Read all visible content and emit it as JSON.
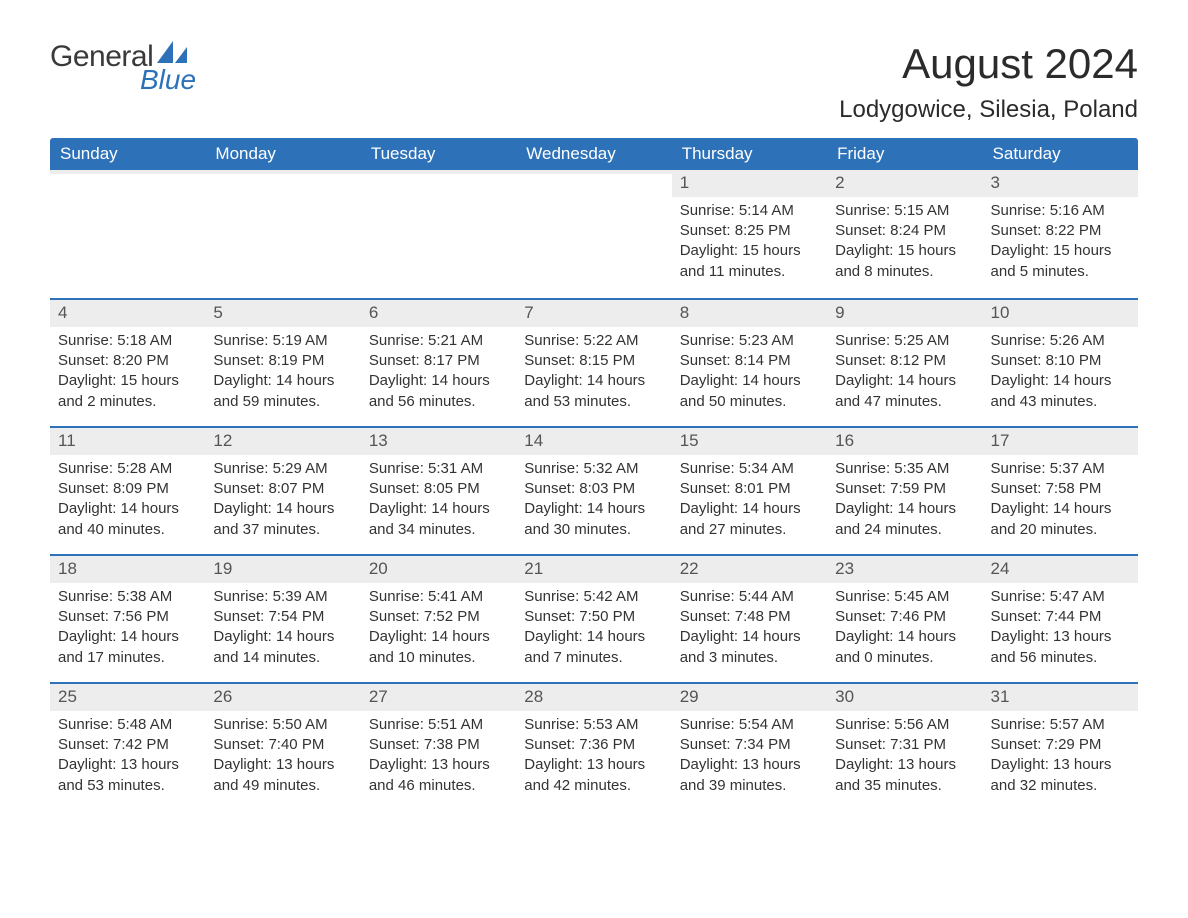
{
  "brand": {
    "name_main": "General",
    "name_sub": "Blue",
    "sail_color": "#2d71b8",
    "text_main_color": "#3a3a3a"
  },
  "header": {
    "month_title": "August 2024",
    "location": "Lodygowice, Silesia, Poland"
  },
  "style": {
    "header_bg": "#2d71b8",
    "header_fg": "#ffffff",
    "daynum_bg": "#ededed",
    "daynum_fg": "#555555",
    "body_fg": "#333333",
    "week_border": "#2d71b8",
    "page_bg": "#ffffff",
    "title_fontsize": 42,
    "location_fontsize": 24,
    "weekday_fontsize": 17,
    "body_fontsize": 15
  },
  "weekdays": [
    "Sunday",
    "Monday",
    "Tuesday",
    "Wednesday",
    "Thursday",
    "Friday",
    "Saturday"
  ],
  "weeks": [
    [
      {
        "empty": true
      },
      {
        "empty": true
      },
      {
        "empty": true
      },
      {
        "empty": true
      },
      {
        "num": "1",
        "sunrise": "Sunrise: 5:14 AM",
        "sunset": "Sunset: 8:25 PM",
        "daylight": "Daylight: 15 hours and 11 minutes."
      },
      {
        "num": "2",
        "sunrise": "Sunrise: 5:15 AM",
        "sunset": "Sunset: 8:24 PM",
        "daylight": "Daylight: 15 hours and 8 minutes."
      },
      {
        "num": "3",
        "sunrise": "Sunrise: 5:16 AM",
        "sunset": "Sunset: 8:22 PM",
        "daylight": "Daylight: 15 hours and 5 minutes."
      }
    ],
    [
      {
        "num": "4",
        "sunrise": "Sunrise: 5:18 AM",
        "sunset": "Sunset: 8:20 PM",
        "daylight": "Daylight: 15 hours and 2 minutes."
      },
      {
        "num": "5",
        "sunrise": "Sunrise: 5:19 AM",
        "sunset": "Sunset: 8:19 PM",
        "daylight": "Daylight: 14 hours and 59 minutes."
      },
      {
        "num": "6",
        "sunrise": "Sunrise: 5:21 AM",
        "sunset": "Sunset: 8:17 PM",
        "daylight": "Daylight: 14 hours and 56 minutes."
      },
      {
        "num": "7",
        "sunrise": "Sunrise: 5:22 AM",
        "sunset": "Sunset: 8:15 PM",
        "daylight": "Daylight: 14 hours and 53 minutes."
      },
      {
        "num": "8",
        "sunrise": "Sunrise: 5:23 AM",
        "sunset": "Sunset: 8:14 PM",
        "daylight": "Daylight: 14 hours and 50 minutes."
      },
      {
        "num": "9",
        "sunrise": "Sunrise: 5:25 AM",
        "sunset": "Sunset: 8:12 PM",
        "daylight": "Daylight: 14 hours and 47 minutes."
      },
      {
        "num": "10",
        "sunrise": "Sunrise: 5:26 AM",
        "sunset": "Sunset: 8:10 PM",
        "daylight": "Daylight: 14 hours and 43 minutes."
      }
    ],
    [
      {
        "num": "11",
        "sunrise": "Sunrise: 5:28 AM",
        "sunset": "Sunset: 8:09 PM",
        "daylight": "Daylight: 14 hours and 40 minutes."
      },
      {
        "num": "12",
        "sunrise": "Sunrise: 5:29 AM",
        "sunset": "Sunset: 8:07 PM",
        "daylight": "Daylight: 14 hours and 37 minutes."
      },
      {
        "num": "13",
        "sunrise": "Sunrise: 5:31 AM",
        "sunset": "Sunset: 8:05 PM",
        "daylight": "Daylight: 14 hours and 34 minutes."
      },
      {
        "num": "14",
        "sunrise": "Sunrise: 5:32 AM",
        "sunset": "Sunset: 8:03 PM",
        "daylight": "Daylight: 14 hours and 30 minutes."
      },
      {
        "num": "15",
        "sunrise": "Sunrise: 5:34 AM",
        "sunset": "Sunset: 8:01 PM",
        "daylight": "Daylight: 14 hours and 27 minutes."
      },
      {
        "num": "16",
        "sunrise": "Sunrise: 5:35 AM",
        "sunset": "Sunset: 7:59 PM",
        "daylight": "Daylight: 14 hours and 24 minutes."
      },
      {
        "num": "17",
        "sunrise": "Sunrise: 5:37 AM",
        "sunset": "Sunset: 7:58 PM",
        "daylight": "Daylight: 14 hours and 20 minutes."
      }
    ],
    [
      {
        "num": "18",
        "sunrise": "Sunrise: 5:38 AM",
        "sunset": "Sunset: 7:56 PM",
        "daylight": "Daylight: 14 hours and 17 minutes."
      },
      {
        "num": "19",
        "sunrise": "Sunrise: 5:39 AM",
        "sunset": "Sunset: 7:54 PM",
        "daylight": "Daylight: 14 hours and 14 minutes."
      },
      {
        "num": "20",
        "sunrise": "Sunrise: 5:41 AM",
        "sunset": "Sunset: 7:52 PM",
        "daylight": "Daylight: 14 hours and 10 minutes."
      },
      {
        "num": "21",
        "sunrise": "Sunrise: 5:42 AM",
        "sunset": "Sunset: 7:50 PM",
        "daylight": "Daylight: 14 hours and 7 minutes."
      },
      {
        "num": "22",
        "sunrise": "Sunrise: 5:44 AM",
        "sunset": "Sunset: 7:48 PM",
        "daylight": "Daylight: 14 hours and 3 minutes."
      },
      {
        "num": "23",
        "sunrise": "Sunrise: 5:45 AM",
        "sunset": "Sunset: 7:46 PM",
        "daylight": "Daylight: 14 hours and 0 minutes."
      },
      {
        "num": "24",
        "sunrise": "Sunrise: 5:47 AM",
        "sunset": "Sunset: 7:44 PM",
        "daylight": "Daylight: 13 hours and 56 minutes."
      }
    ],
    [
      {
        "num": "25",
        "sunrise": "Sunrise: 5:48 AM",
        "sunset": "Sunset: 7:42 PM",
        "daylight": "Daylight: 13 hours and 53 minutes."
      },
      {
        "num": "26",
        "sunrise": "Sunrise: 5:50 AM",
        "sunset": "Sunset: 7:40 PM",
        "daylight": "Daylight: 13 hours and 49 minutes."
      },
      {
        "num": "27",
        "sunrise": "Sunrise: 5:51 AM",
        "sunset": "Sunset: 7:38 PM",
        "daylight": "Daylight: 13 hours and 46 minutes."
      },
      {
        "num": "28",
        "sunrise": "Sunrise: 5:53 AM",
        "sunset": "Sunset: 7:36 PM",
        "daylight": "Daylight: 13 hours and 42 minutes."
      },
      {
        "num": "29",
        "sunrise": "Sunrise: 5:54 AM",
        "sunset": "Sunset: 7:34 PM",
        "daylight": "Daylight: 13 hours and 39 minutes."
      },
      {
        "num": "30",
        "sunrise": "Sunrise: 5:56 AM",
        "sunset": "Sunset: 7:31 PM",
        "daylight": "Daylight: 13 hours and 35 minutes."
      },
      {
        "num": "31",
        "sunrise": "Sunrise: 5:57 AM",
        "sunset": "Sunset: 7:29 PM",
        "daylight": "Daylight: 13 hours and 32 minutes."
      }
    ]
  ]
}
